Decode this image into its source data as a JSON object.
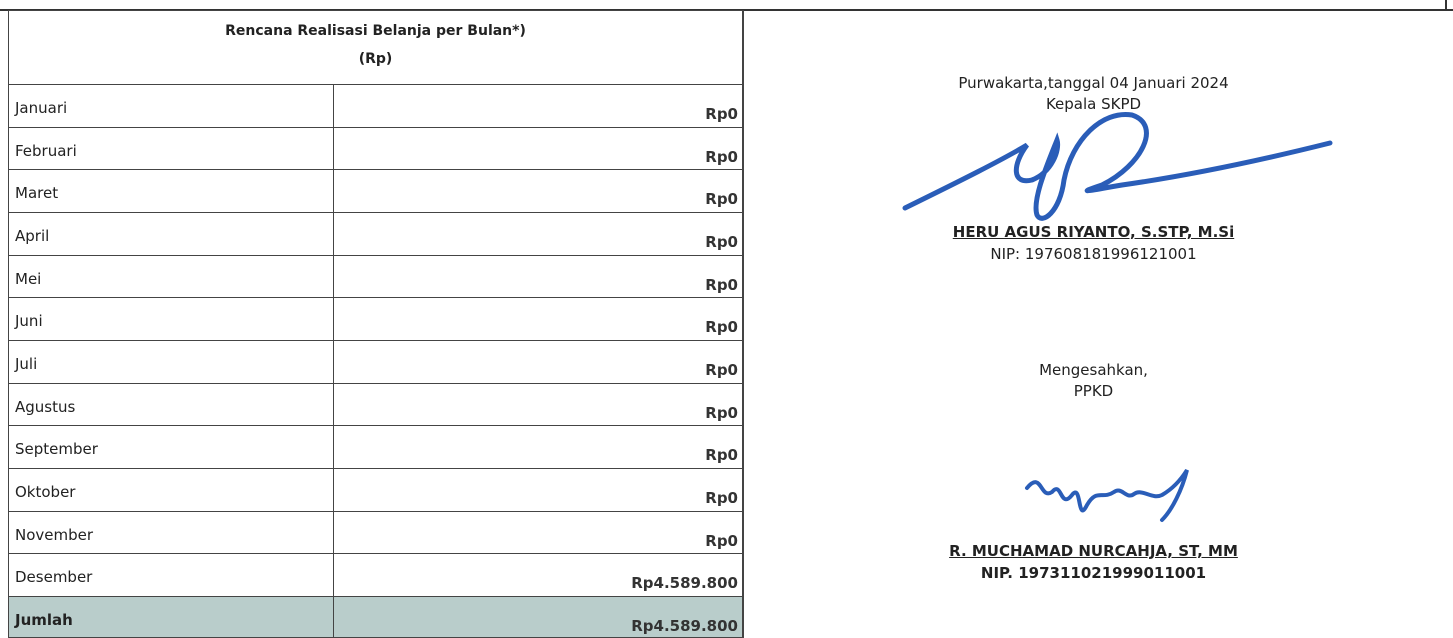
{
  "table": {
    "title": "Rencana Realisasi Belanja per Bulan*)",
    "subtitle": "(Rp)",
    "rows": [
      [
        "Januari",
        "Rp0"
      ],
      [
        "Februari",
        "Rp0"
      ],
      [
        "Maret",
        "Rp0"
      ],
      [
        "April",
        "Rp0"
      ],
      [
        "Mei",
        "Rp0"
      ],
      [
        "Juni",
        "Rp0"
      ],
      [
        "Juli",
        "Rp0"
      ],
      [
        "Agustus",
        "Rp0"
      ],
      [
        "September",
        "Rp0"
      ],
      [
        "Oktober",
        "Rp0"
      ],
      [
        "November",
        "Rp0"
      ],
      [
        "Desember",
        "Rp4.589.800"
      ]
    ],
    "total": [
      "Jumlah",
      "Rp4.589.800"
    ]
  },
  "signature": {
    "place_date": "Purwakarta,tanggal 04 Januari 2024",
    "role1": "Kepala SKPD",
    "name1": "HERU AGUS RIYANTO, S.STP, M.Si",
    "nip1": "NIP: 197608181996121001",
    "approval": "Mengesahkan,",
    "role2": "PPKD",
    "name2": "R. MUCHAMAD NURCAHJA, ST, MM",
    "nip2": "NIP. 197311021999011001"
  }
}
